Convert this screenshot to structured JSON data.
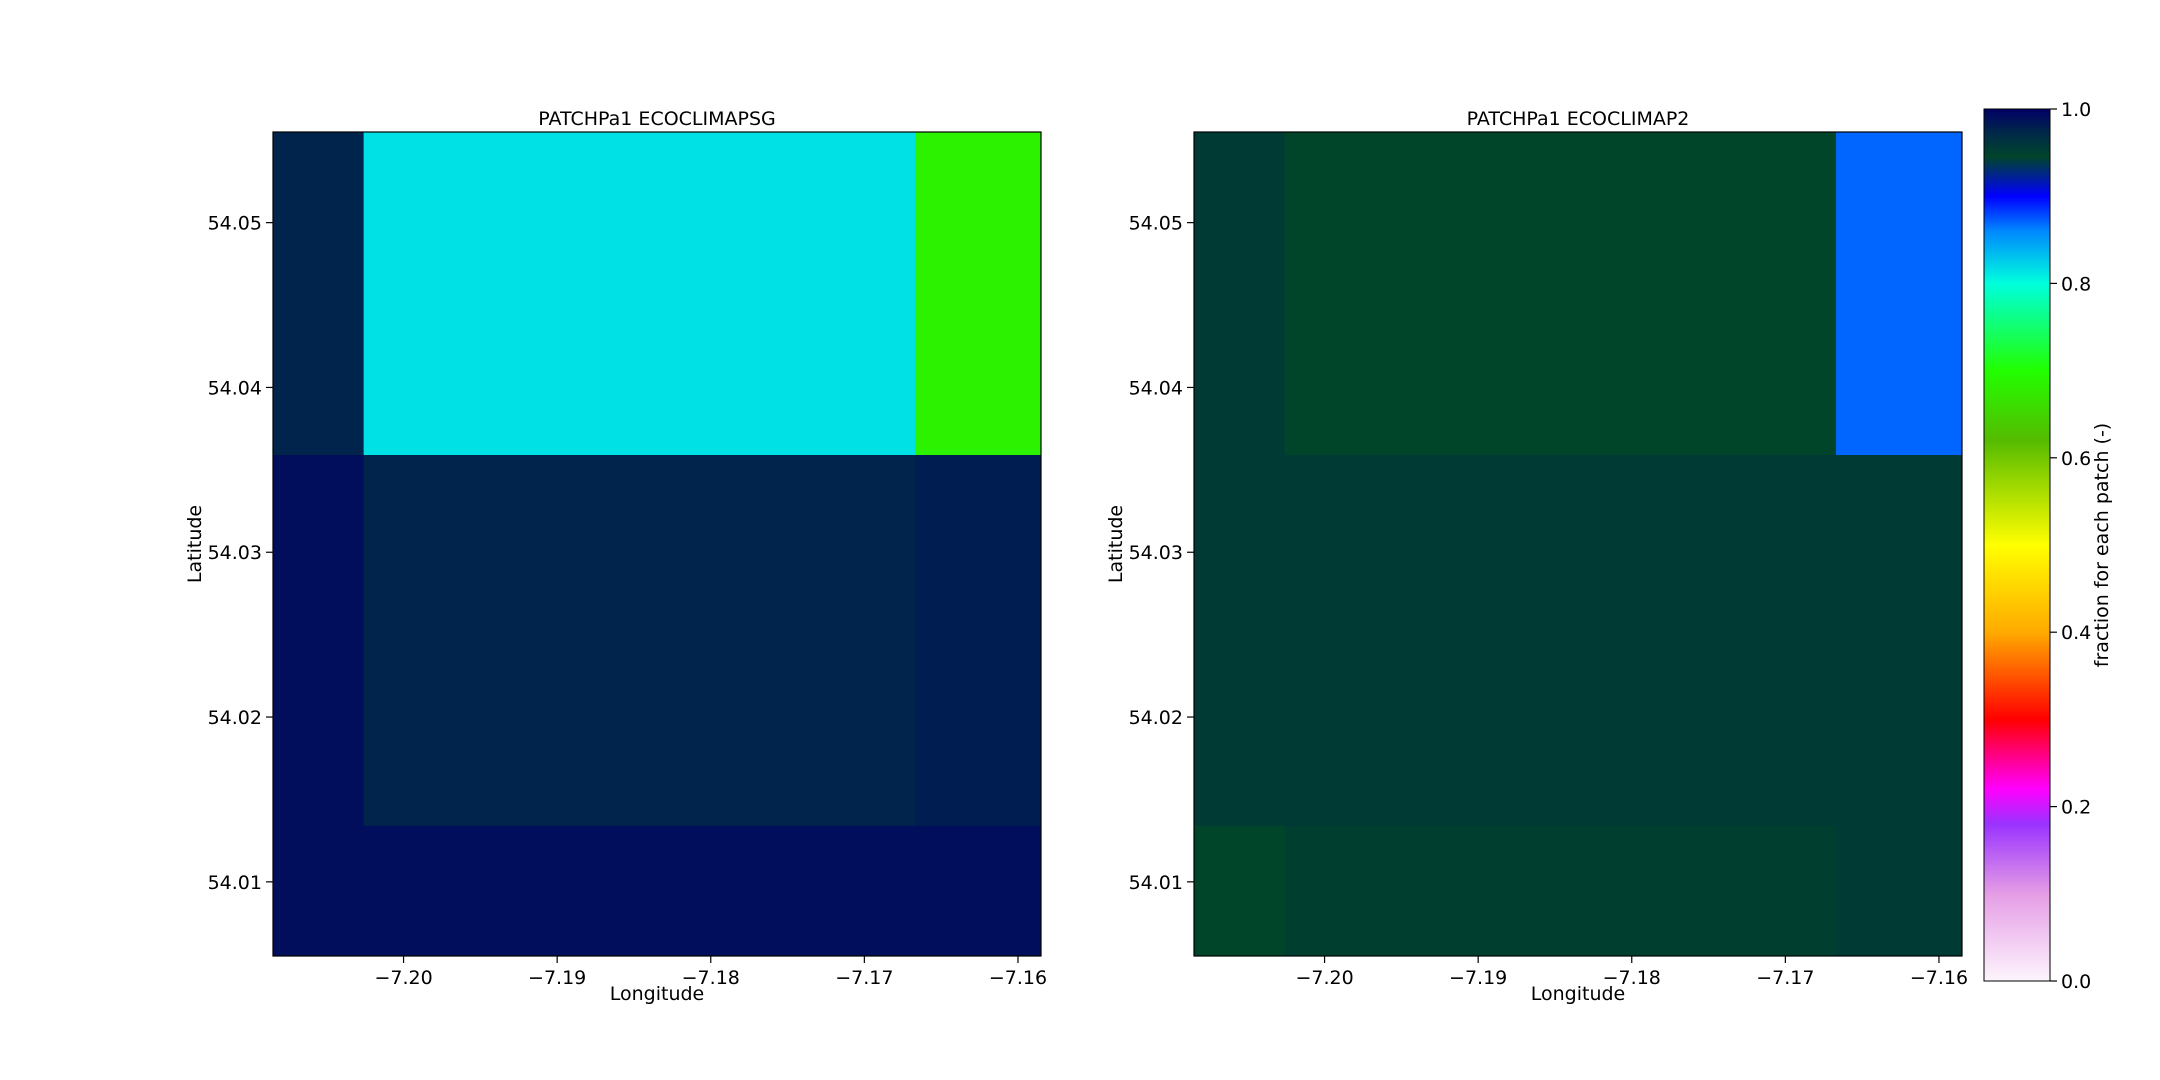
{
  "chart_data": [
    {
      "type": "heatmap",
      "title": "PATCHPa1 ECOCLIMAPSG",
      "xlabel": "Longitude",
      "ylabel": "Latitude",
      "xlim": [
        -7.2085,
        -7.1585
      ],
      "ylim": [
        54.0055,
        54.0555
      ],
      "xticks": [
        -7.2,
        -7.19,
        -7.18,
        -7.17,
        -7.16
      ],
      "xticklabels": [
        "−7.20",
        "−7.19",
        "−7.18",
        "−7.17",
        "−7.16"
      ],
      "yticks": [
        54.01,
        54.02,
        54.03,
        54.04,
        54.05
      ],
      "yticklabels": [
        "54.01",
        "54.02",
        "54.03",
        "54.04",
        "54.05"
      ],
      "x_edges": [
        -7.2085,
        -7.2026,
        -7.1667,
        -7.1585
      ],
      "y_edges": [
        54.0555,
        54.0359,
        54.0134,
        54.0055
      ],
      "values": [
        [
          0.975,
          0.815,
          0.685
        ],
        [
          0.99,
          0.975,
          0.98
        ],
        [
          0.99,
          0.99,
          0.99
        ]
      ]
    },
    {
      "type": "heatmap",
      "title": "PATCHPa1 ECOCLIMAP2",
      "xlabel": "Longitude",
      "ylabel": "Latitude",
      "xlim": [
        -7.2085,
        -7.1585
      ],
      "ylim": [
        54.0055,
        54.0555
      ],
      "xticks": [
        -7.2,
        -7.19,
        -7.18,
        -7.17,
        -7.16
      ],
      "xticklabels": [
        "−7.20",
        "−7.19",
        "−7.18",
        "−7.17",
        "−7.16"
      ],
      "yticks": [
        54.01,
        54.02,
        54.03,
        54.04,
        54.05
      ],
      "yticklabels": [
        "54.01",
        "54.02",
        "54.03",
        "54.04",
        "54.05"
      ],
      "x_edges": [
        -7.2085,
        -7.2026,
        -7.1667,
        -7.1585
      ],
      "y_edges": [
        54.0555,
        54.0359,
        54.0134,
        54.0055
      ],
      "values": [
        [
          0.955,
          0.945,
          0.87
        ],
        [
          0.955,
          0.955,
          0.955
        ],
        [
          0.945,
          0.95,
          0.955
        ]
      ]
    }
  ],
  "colorbar": {
    "label": "fraction for each patch (-)",
    "range": [
      0.0,
      1.0
    ],
    "ticks": [
      0.0,
      0.2,
      0.4,
      0.6,
      0.8,
      1.0
    ],
    "ticklabels": [
      "0.0",
      "0.2",
      "0.4",
      "0.6",
      "0.8",
      "1.0"
    ],
    "colormap_stops": [
      [
        0.0,
        "#fdf5fd"
      ],
      [
        0.1,
        "#e59de5"
      ],
      [
        0.18,
        "#9a33ff"
      ],
      [
        0.22,
        "#ff00ff"
      ],
      [
        0.3,
        "#ff0000"
      ],
      [
        0.4,
        "#ffaa00"
      ],
      [
        0.5,
        "#ffff00"
      ],
      [
        0.62,
        "#55bb00"
      ],
      [
        0.7,
        "#22ff00"
      ],
      [
        0.8,
        "#00ffdd"
      ],
      [
        0.86,
        "#0088ff"
      ],
      [
        0.9,
        "#0000ff"
      ],
      [
        0.945,
        "#00442a"
      ],
      [
        0.97,
        "#002b46"
      ],
      [
        1.0,
        "#000066"
      ]
    ]
  }
}
